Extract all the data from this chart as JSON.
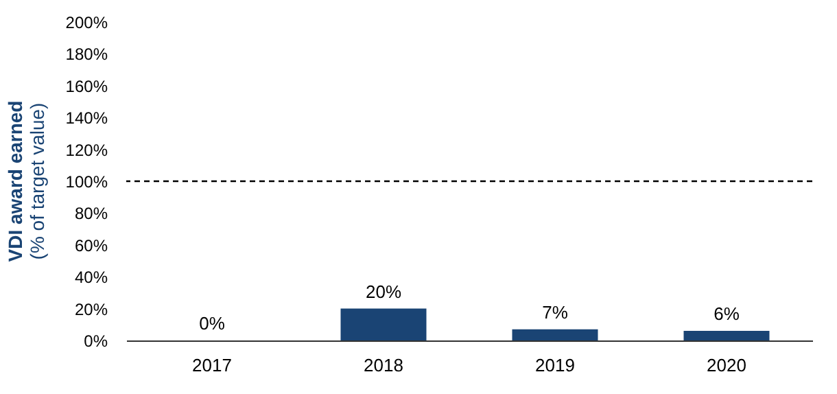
{
  "chart_data": {
    "type": "bar",
    "ylabel": "VDI award earned\n(% of target value)",
    "categories": [
      "2017",
      "2018",
      "2019",
      "2020"
    ],
    "values": [
      0,
      20,
      7,
      6
    ],
    "color": "#1a4474",
    "value_labels": [
      "0%",
      "20%",
      "7%",
      "6%"
    ],
    "ylim": [
      0,
      200
    ],
    "yticks": [
      {
        "value": 0,
        "label": "0%"
      },
      {
        "value": 20,
        "label": "20%"
      },
      {
        "value": 40,
        "label": "40%"
      },
      {
        "value": 60,
        "label": "60%"
      },
      {
        "value": 80,
        "label": "80%"
      },
      {
        "value": 100,
        "label": "100%"
      },
      {
        "value": 120,
        "label": "120%"
      },
      {
        "value": 140,
        "label": "140%"
      },
      {
        "value": 160,
        "label": "160%"
      },
      {
        "value": 180,
        "label": "180%"
      },
      {
        "value": 200,
        "label": "200%"
      }
    ],
    "ref_lines": [
      {
        "axis": "y",
        "value": 100,
        "label": null,
        "color": "#000000",
        "line_style": "dashed"
      }
    ],
    "grid": false
  }
}
